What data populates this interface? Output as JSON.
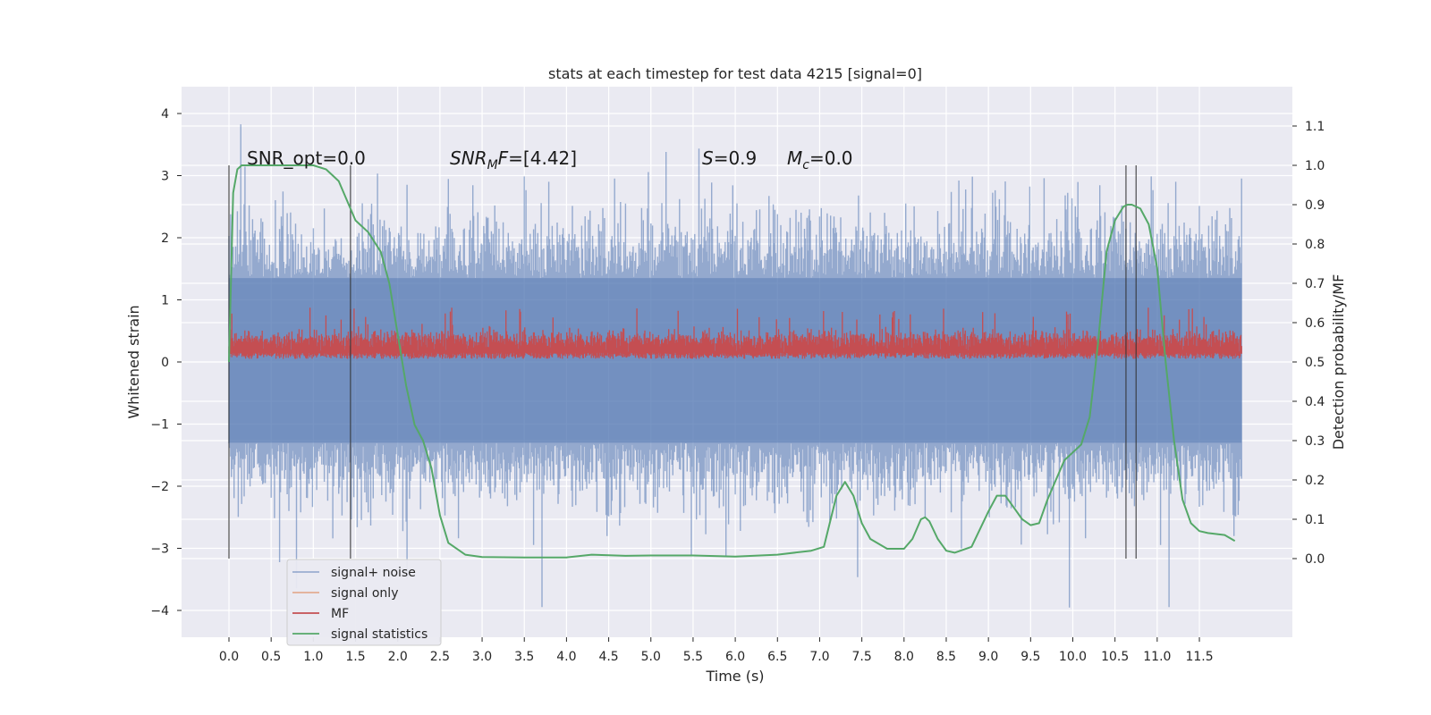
{
  "chart_data": {
    "type": "line",
    "title": "stats at each timestep for test data 4215 [signal=0]",
    "xlabel": "Time (s)",
    "ylabel": "Whitened strain",
    "ylabel_right": "Detection probability/MF",
    "xlim": [
      -0.58,
      12.6
    ],
    "ylim": [
      -4.4,
      4.5
    ],
    "ylim_right": [
      -0.2,
      1.2
    ],
    "x_ticks": [
      "0.0",
      "0.5",
      "1.0",
      "1.5",
      "2.0",
      "2.5",
      "3.0",
      "3.5",
      "4.0",
      "4.5",
      "5.0",
      "5.5",
      "6.0",
      "6.5",
      "7.0",
      "7.5",
      "8.0",
      "8.5",
      "9.0",
      "9.5",
      "10.0",
      "10.5",
      "11.0",
      "11.5"
    ],
    "y_ticks": [
      "4",
      "3",
      "2",
      "1",
      "0",
      "−1",
      "−2",
      "−3",
      "−4"
    ],
    "y_ticks_right": [
      "1.1",
      "1.0",
      "0.9",
      "0.8",
      "0.7",
      "0.6",
      "0.5",
      "0.4",
      "0.3",
      "0.2",
      "0.1",
      "0.0"
    ],
    "grid": true,
    "legend_position": "lower-left",
    "annotations": {
      "snr_opt_text": "SNR_opt=0.0",
      "snr_mf_base": "SNR",
      "snr_mf_sub": "M",
      "snr_mf_rest": "F=[4.42]",
      "s_base": "S",
      "s_rest": "=0.9",
      "mc_base": "M",
      "mc_sub": "c",
      "mc_rest": "=0.0"
    },
    "vertical_markers": [
      0.0,
      1.44,
      10.63,
      10.75
    ],
    "series": [
      {
        "name": "signal+ noise",
        "color": "#4c72b0",
        "axis": "left",
        "x_range": [
          0.0,
          12.0
        ],
        "envelope": {
          "typical_high": 1.35,
          "typical_low": -1.3,
          "peak_high": 4.1,
          "peak_low": -4.0
        }
      },
      {
        "name": "signal only",
        "color": "#dd8452",
        "axis": "left",
        "values": []
      },
      {
        "name": "MF",
        "color": "#c44e52",
        "axis": "left",
        "x_range": [
          0.0,
          12.0
        ],
        "envelope": {
          "typical_high": 0.55,
          "typical_low": 0.05,
          "peak_high": 0.88,
          "peak_low": 0.05
        }
      },
      {
        "name": "signal statistics",
        "color": "#55a868",
        "axis": "right",
        "x": [
          0.0,
          0.05,
          0.1,
          0.15,
          0.3,
          0.6,
          1.0,
          1.15,
          1.3,
          1.4,
          1.5,
          1.65,
          1.8,
          1.9,
          2.0,
          2.1,
          2.2,
          2.3,
          2.4,
          2.5,
          2.6,
          2.8,
          3.0,
          3.5,
          4.0,
          4.3,
          4.7,
          5.0,
          5.5,
          6.0,
          6.5,
          6.9,
          7.05,
          7.2,
          7.3,
          7.4,
          7.5,
          7.6,
          7.8,
          8.0,
          8.1,
          8.2,
          8.25,
          8.3,
          8.4,
          8.5,
          8.6,
          8.8,
          9.0,
          9.1,
          9.2,
          9.3,
          9.4,
          9.5,
          9.6,
          9.7,
          9.8,
          9.9,
          10.0,
          10.1,
          10.2,
          10.3,
          10.4,
          10.5,
          10.6,
          10.65,
          10.7,
          10.8,
          10.9,
          11.0,
          11.1,
          11.2,
          11.3,
          11.4,
          11.5,
          11.6,
          11.8,
          11.92
        ],
        "values": [
          0.5,
          0.93,
          0.99,
          1.0,
          1.0,
          1.0,
          1.0,
          0.99,
          0.96,
          0.91,
          0.86,
          0.83,
          0.78,
          0.7,
          0.57,
          0.44,
          0.34,
          0.3,
          0.23,
          0.11,
          0.04,
          0.01,
          0.004,
          0.003,
          0.003,
          0.01,
          0.007,
          0.008,
          0.008,
          0.005,
          0.01,
          0.02,
          0.03,
          0.16,
          0.195,
          0.16,
          0.09,
          0.05,
          0.025,
          0.025,
          0.05,
          0.1,
          0.105,
          0.095,
          0.05,
          0.02,
          0.015,
          0.03,
          0.12,
          0.16,
          0.16,
          0.13,
          0.1,
          0.085,
          0.09,
          0.15,
          0.2,
          0.25,
          0.27,
          0.29,
          0.36,
          0.55,
          0.78,
          0.86,
          0.895,
          0.9,
          0.9,
          0.89,
          0.85,
          0.74,
          0.5,
          0.3,
          0.15,
          0.09,
          0.07,
          0.065,
          0.06,
          0.045
        ]
      }
    ]
  }
}
